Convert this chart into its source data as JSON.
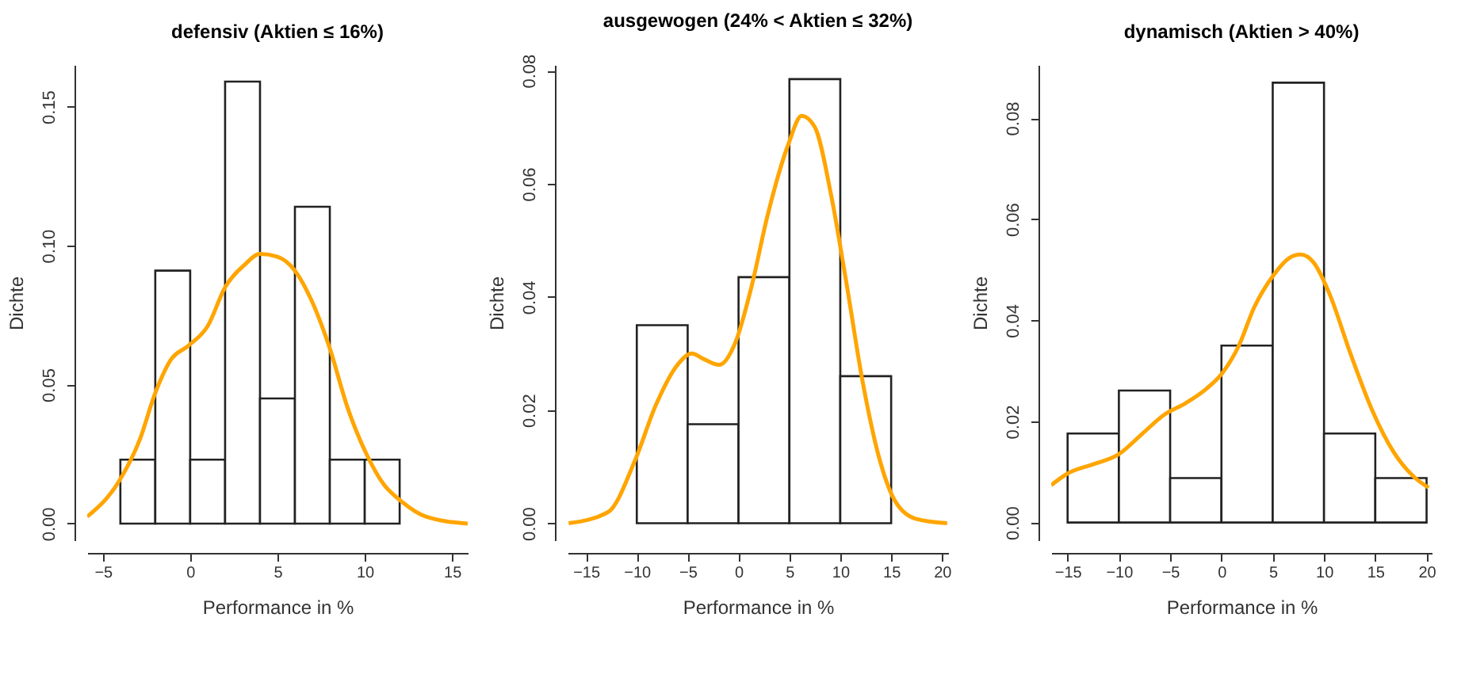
{
  "chart_data": [
    {
      "type": "histogram",
      "title": "defensiv (Aktien ≤ 16%)",
      "xlabel": "Performance in %",
      "ylabel": "Dichte",
      "color": "#ffffff",
      "bins": [
        -4,
        -2,
        0,
        2,
        4,
        6,
        8,
        10,
        12
      ],
      "values": [
        0.023,
        0.091,
        0.023,
        0.159,
        0.045,
        0.114,
        0.023,
        0.023
      ],
      "series": [
        {
          "type": "line",
          "color": "#ffa500",
          "x": [
            -5.9,
            -4.1,
            -2.9,
            -2.0,
            -1.1,
            -0.1,
            1.0,
            2.0,
            3.1,
            4.0,
            5.0,
            6.0,
            6.9,
            8.0,
            9.0,
            10.1,
            11.1,
            12.0,
            13.5,
            15.9
          ],
          "values": [
            0.0025,
            0.015,
            0.03,
            0.047,
            0.059,
            0.064,
            0.071,
            0.085,
            0.093,
            0.097,
            0.096,
            0.091,
            0.081,
            0.063,
            0.042,
            0.025,
            0.014,
            0.0085,
            0.0025,
            0.0
          ]
        }
      ],
      "xlim": [
        -5.9,
        15.9
      ],
      "ylim": [
        -0.006,
        0.165
      ],
      "xticks": [
        -5,
        0,
        5,
        10,
        15
      ],
      "yticks": [
        {
          "value": 0,
          "label": "0.00"
        },
        {
          "value": 0.05,
          "label": "0.05"
        },
        {
          "value": 0.1,
          "label": "0.10"
        },
        {
          "value": 0.15,
          "label": "0.15"
        }
      ],
      "grid": false,
      "legend": false
    },
    {
      "type": "histogram",
      "title": "ausgewogen (24% < Aktien ≤ 32%)",
      "xlabel": "Performance in %",
      "ylabel": "Dichte",
      "color": "#ffffff",
      "bins": [
        -10,
        -5,
        0,
        5,
        10,
        15
      ],
      "values": [
        0.035,
        0.0175,
        0.0435,
        0.0785,
        0.026
      ],
      "series": [
        {
          "type": "line",
          "color": "#ffa500",
          "x": [
            -16.7,
            -12.8,
            -10.2,
            -8.1,
            -6.0,
            -4.6,
            -3.4,
            -1.9,
            -0.3,
            1.3,
            2.8,
            4.9,
            6.2,
            7.5,
            9.1,
            10.6,
            12.2,
            13.8,
            15.3,
            17.4,
            20.5
          ],
          "values": [
            0.0,
            0.002,
            0.011,
            0.021,
            0.028,
            0.03,
            0.029,
            0.028,
            0.032,
            0.042,
            0.054,
            0.067,
            0.072,
            0.07,
            0.058,
            0.0425,
            0.025,
            0.0117,
            0.0042,
            0.0008,
            0.0
          ]
        }
      ],
      "xlim": [
        -16.8,
        20.6
      ],
      "ylim": [
        -0.003,
        0.081
      ],
      "xticks": [
        -15,
        -10,
        -5,
        0,
        5,
        10,
        15,
        20
      ],
      "yticks": [
        {
          "value": 0,
          "label": "0.00"
        },
        {
          "value": 0.02,
          "label": "0.02"
        },
        {
          "value": 0.04,
          "label": "0.04"
        },
        {
          "value": 0.06,
          "label": "0.06"
        },
        {
          "value": 0.08,
          "label": "0.08"
        }
      ],
      "grid": false,
      "legend": false
    },
    {
      "type": "histogram",
      "title": "dynamisch (Aktien > 40%)",
      "xlabel": "Performance in %",
      "ylabel": "Dichte",
      "color": "#ffffff",
      "bins": [
        -15,
        -10,
        -5,
        0,
        5,
        10,
        15,
        20
      ],
      "values": [
        0.0176,
        0.0261,
        0.0088,
        0.035,
        0.087,
        0.0176,
        0.0088
      ],
      "series": [
        {
          "type": "line",
          "color": "#ffa500",
          "x": [
            -16.6,
            -15.0,
            -12.4,
            -10.1,
            -7.7,
            -5.6,
            -3.5,
            -1.5,
            0.1,
            1.7,
            3.2,
            5.1,
            6.6,
            7.7,
            9.0,
            10.5,
            12.6,
            14.7,
            16.8,
            18.9,
            20.2
          ],
          "values": [
            0.0074,
            0.0097,
            0.0116,
            0.0134,
            0.0176,
            0.0213,
            0.0236,
            0.0264,
            0.0296,
            0.035,
            0.0426,
            0.049,
            0.0523,
            0.053,
            0.0514,
            0.0454,
            0.0333,
            0.0222,
            0.0139,
            0.0088,
            0.0069
          ]
        }
      ],
      "xlim": [
        -16.6,
        20.5
      ],
      "ylim": [
        -0.0035,
        0.0905
      ],
      "xticks": [
        -15,
        -10,
        -5,
        0,
        5,
        10,
        15,
        20
      ],
      "yticks": [
        {
          "value": 0,
          "label": "0.00"
        },
        {
          "value": 0.02,
          "label": "0.02"
        },
        {
          "value": 0.04,
          "label": "0.04"
        },
        {
          "value": 0.06,
          "label": "0.06"
        },
        {
          "value": 0.08,
          "label": "0.08"
        }
      ],
      "grid": false,
      "legend": false
    }
  ]
}
